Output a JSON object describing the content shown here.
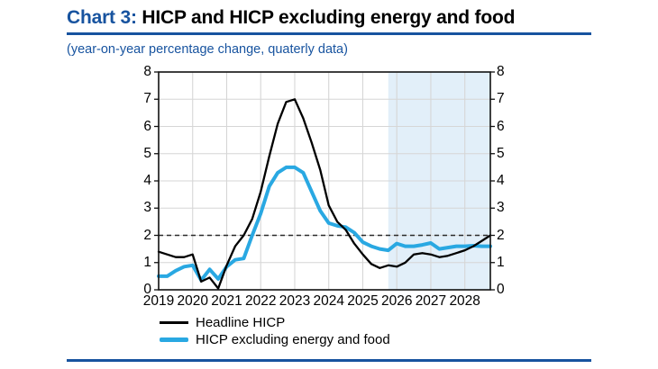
{
  "page": {
    "title_prefix": "Chart 3:",
    "title_rest": " HICP and HICP excluding energy and food",
    "subtitle": "(year-on-year percentage change, quaterly data)"
  },
  "colors": {
    "accent_blue": "#17539F",
    "headline_line": "#000000",
    "core_line": "#29A8E2",
    "projection_shade": "#E2EFF9",
    "gridline": "#D6D6D6",
    "target_dash": "#2B2B2B",
    "axis": "#111111"
  },
  "chart_data": {
    "type": "line",
    "frequency": "quarterly",
    "x_years": [
      "2019",
      "2020",
      "2021",
      "2022",
      "2023",
      "2024",
      "2025",
      "2026",
      "2027",
      "2028"
    ],
    "quarters_per_year": 4,
    "ylim": [
      0,
      8
    ],
    "yticks": [
      0,
      1,
      2,
      3,
      4,
      5,
      6,
      7,
      8
    ],
    "y_axis_sides": "both",
    "grid": "vertical lines at each year, horizontal lines at each integer",
    "target_dashed_line_y": 2,
    "projection_shading_start_index": 27,
    "legend_position": "bottom-left",
    "series": [
      {
        "name": "Headline HICP",
        "color": "#000000",
        "stroke_width": 2.3,
        "values": [
          1.4,
          1.3,
          1.2,
          1.2,
          1.3,
          0.3,
          0.45,
          0.05,
          0.9,
          1.6,
          2.0,
          2.6,
          3.6,
          4.9,
          6.1,
          6.9,
          7.0,
          6.3,
          5.4,
          4.4,
          3.1,
          2.5,
          2.2,
          1.7,
          1.3,
          0.95,
          0.8,
          0.9,
          0.85,
          1.0,
          1.3,
          1.35,
          1.3,
          1.2,
          1.25,
          1.35,
          1.45,
          1.6,
          1.8,
          2.0
        ]
      },
      {
        "name": "HICP excluding energy and food",
        "color": "#29A8E2",
        "stroke_width": 4,
        "values": [
          0.5,
          0.5,
          0.7,
          0.85,
          0.9,
          0.35,
          0.75,
          0.4,
          0.85,
          1.1,
          1.15,
          2.0,
          2.8,
          3.8,
          4.3,
          4.5,
          4.5,
          4.3,
          3.6,
          2.9,
          2.45,
          2.35,
          2.3,
          2.1,
          1.75,
          1.6,
          1.5,
          1.45,
          1.7,
          1.6,
          1.6,
          1.65,
          1.72,
          1.5,
          1.55,
          1.6,
          1.6,
          1.62,
          1.6,
          1.6
        ]
      }
    ]
  }
}
